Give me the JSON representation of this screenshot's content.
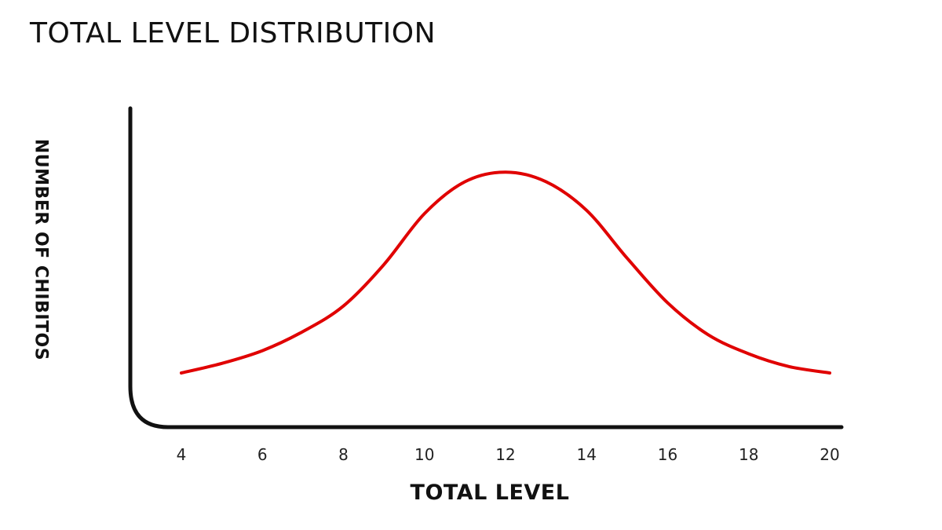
{
  "chart_data": {
    "type": "line",
    "title": "TOTAL LEVEL DISTRIBUTION",
    "xlabel": "TOTAL LEVEL",
    "ylabel": "NUMBER OF CHIBITOS",
    "x_ticks": [
      4,
      6,
      8,
      10,
      12,
      14,
      16,
      18,
      20
    ],
    "xlim": [
      4,
      20
    ],
    "ylim": [
      0,
      100
    ],
    "grid": false,
    "series": [
      {
        "color": "#e00000",
        "x": [
          4,
          5,
          6,
          7,
          8,
          9,
          10,
          11,
          12,
          13,
          14,
          15,
          16,
          17,
          18,
          19,
          20
        ],
        "y": [
          17,
          20,
          24,
          30,
          38,
          51,
          67,
          77,
          80,
          77,
          68,
          53,
          39,
          29,
          23,
          19,
          17
        ]
      }
    ]
  }
}
